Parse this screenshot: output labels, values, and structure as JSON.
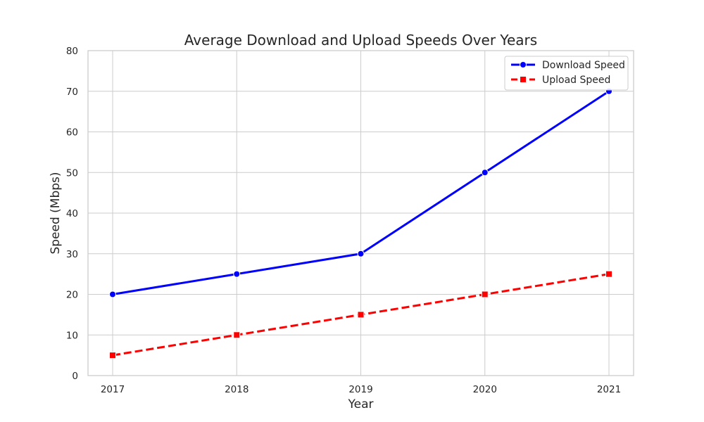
{
  "chart_data": {
    "type": "line",
    "title": "Average Download and Upload Speeds Over Years",
    "xlabel": "Year",
    "ylabel": "Speed (Mbps)",
    "x": [
      "2017",
      "2018",
      "2019",
      "2020",
      "2021"
    ],
    "ylim": [
      0,
      80
    ],
    "yticks": [
      0,
      10,
      20,
      30,
      40,
      50,
      60,
      70,
      80
    ],
    "grid": true,
    "legend_position": "top-right",
    "series": [
      {
        "name": "Download Speed",
        "values": [
          20,
          25,
          30,
          50,
          70
        ],
        "color": "#0000ff",
        "marker": "circle",
        "line_style": "solid"
      },
      {
        "name": "Upload Speed",
        "values": [
          5,
          10,
          15,
          20,
          25
        ],
        "color": "#ff0000",
        "marker": "square",
        "line_style": "dashed"
      }
    ]
  }
}
